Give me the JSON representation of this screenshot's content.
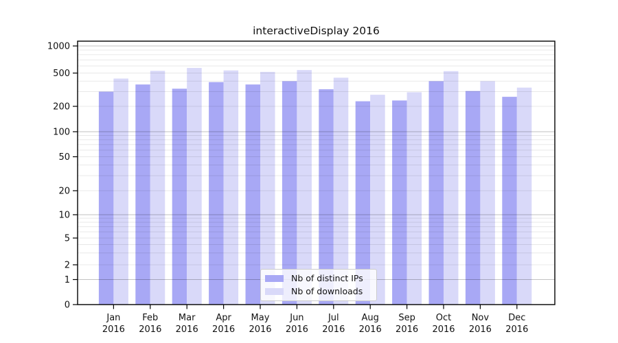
{
  "chart_data": {
    "type": "bar",
    "title": "interactiveDisplay 2016",
    "categories": [
      "Jan",
      "Feb",
      "Mar",
      "Apr",
      "May",
      "Jun",
      "Jul",
      "Aug",
      "Sep",
      "Oct",
      "Nov",
      "Dec"
    ],
    "year_label": "2016",
    "series": [
      {
        "name": "Nb of distinct IPs",
        "color": "#a8a8f5",
        "values": [
          300,
          365,
          325,
          390,
          365,
          400,
          320,
          230,
          235,
          400,
          305,
          260
        ]
      },
      {
        "name": "Nb of downloads",
        "color": "#d9d9f9",
        "values": [
          430,
          530,
          570,
          535,
          515,
          540,
          440,
          275,
          295,
          525,
          400,
          335
        ]
      }
    ],
    "yscale": "symlog",
    "ylim": [
      0,
      1000
    ],
    "yticks": [
      0,
      1,
      2,
      5,
      10,
      20,
      50,
      100,
      200,
      500,
      1000
    ],
    "grid": "both",
    "legend_position": "lower center",
    "axis_color": "#000000",
    "major_grid_color": "rgba(0,0,0,0.24)",
    "minor_grid_color": "rgba(0,0,0,0.09)",
    "tick_label_color": "#111111",
    "background_color": "#ffffff"
  }
}
